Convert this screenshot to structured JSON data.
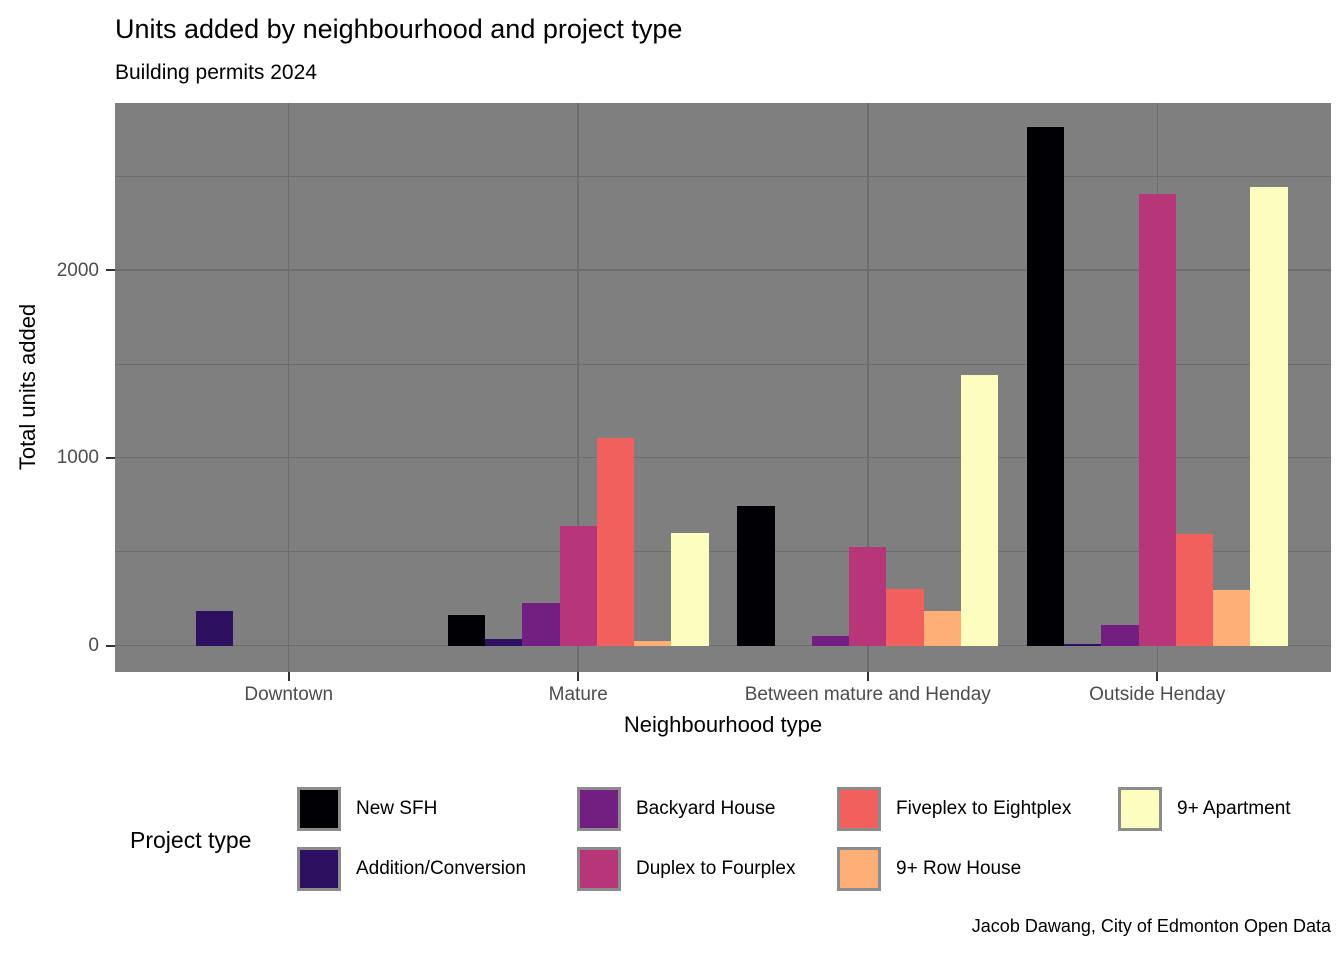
{
  "header": {
    "title": "Units added by neighbourhood and project type",
    "subtitle": "Building permits 2024"
  },
  "caption": "Jacob Dawang, City of Edmonton Open Data",
  "chart_data": {
    "type": "bar",
    "title": "Units added by neighbourhood and project type",
    "subtitle": "Building permits 2024",
    "xlabel": "Neighbourhood type",
    "ylabel": "Total units added",
    "legend_title": "Project type",
    "legend_position": "bottom",
    "categories": [
      "Downtown",
      "Mature",
      "Between mature and Henday",
      "Outside Henday"
    ],
    "series": [
      {
        "name": "New SFH",
        "color": "#000004",
        "values": [
          0,
          165,
          745,
          2760
        ]
      },
      {
        "name": "Addition/Conversion",
        "color": "#2d1160",
        "values": [
          185,
          35,
          0,
          10
        ]
      },
      {
        "name": "Backyard House",
        "color": "#721f81",
        "values": [
          0,
          230,
          50,
          110
        ]
      },
      {
        "name": "Duplex to Fourplex",
        "color": "#b63679",
        "values": [
          0,
          640,
          525,
          2405
        ]
      },
      {
        "name": "Fiveplex to Eightplex",
        "color": "#f1605d",
        "values": [
          0,
          1105,
          300,
          595
        ]
      },
      {
        "name": "9+ Row House",
        "color": "#feae77",
        "values": [
          0,
          25,
          185,
          295
        ]
      },
      {
        "name": "9+ Apartment",
        "color": "#fcfdbf",
        "values": [
          0,
          600,
          1440,
          2445
        ]
      }
    ],
    "y_ticks": [
      0,
      1000,
      2000
    ],
    "y_minor_gridlines": [
      500,
      1500,
      2500
    ],
    "ylim": [
      -140,
      2890
    ],
    "grid": true,
    "panel_background": "#7f7f7f",
    "gridline_color": "#6d6d6d",
    "axis_text_color": "#4d4d4d"
  }
}
